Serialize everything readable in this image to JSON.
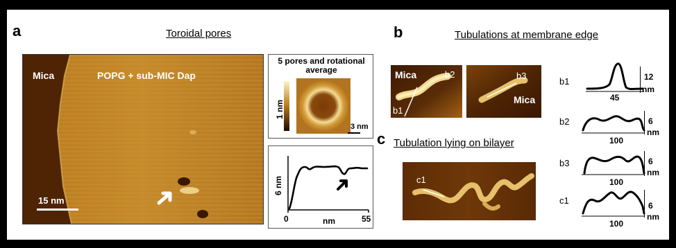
{
  "panel_a": {
    "letter": "a",
    "title": "Toroidal pores",
    "image": {
      "label_left": "Mica",
      "label_sample": "POPG + sub-MIC Dap",
      "scale_bar": "15 nm"
    },
    "inset": {
      "title_line1": "5 pores and rotational",
      "title_line2": "average",
      "colorbar_label": "1 nm",
      "scale_bar": "3 nm"
    },
    "profile": {
      "y_label": "6 nm",
      "x_label": "nm",
      "x_min": "0",
      "x_max": "55"
    }
  },
  "panel_b": {
    "letter": "b",
    "title": "Tubulations at membrane edge",
    "image_left": {
      "label_mica": "Mica",
      "label_b1": "b1",
      "label_b2": "b2"
    },
    "image_right": {
      "label_b3": "b3",
      "label_mica": "Mica"
    }
  },
  "panel_c": {
    "letter": "c",
    "title": "Tubulation lying on bilayer",
    "image": {
      "label_c1": "c1"
    }
  },
  "profiles": [
    {
      "id": "b1",
      "height": "12",
      "unit": "nm",
      "x": "45"
    },
    {
      "id": "b2",
      "height": "6",
      "unit": "nm",
      "x": "100"
    },
    {
      "id": "b3",
      "height": "6",
      "unit": "nm",
      "x": "100"
    },
    {
      "id": "c1",
      "height": "6",
      "unit": "nm",
      "x": "100"
    }
  ],
  "colors": {
    "afm_dark": "#5a2a06",
    "afm_mid": "#b8781a",
    "afm_bright": "#f2d88a",
    "frame": "#000000"
  }
}
